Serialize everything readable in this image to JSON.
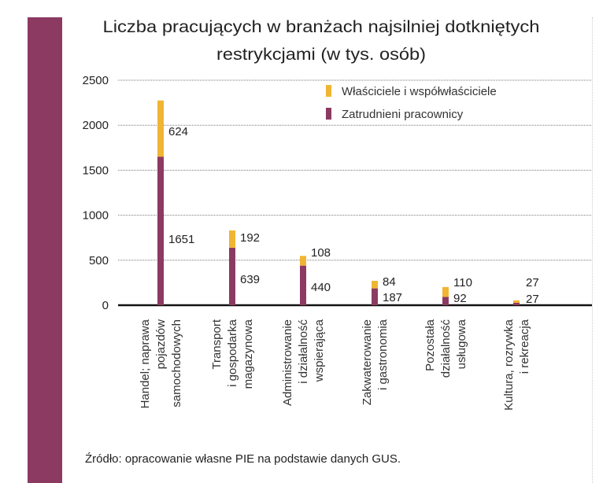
{
  "chart_data": {
    "type": "bar",
    "stacked": true,
    "title": [
      "Liczba pracujących w branżach najsilniej dotkniętych",
      "restrykcjami (w tys. osób)"
    ],
    "categories": [
      [
        "Handel; naprawa",
        "pojazdów",
        "samochodowych"
      ],
      [
        "Transport",
        "i gospodarka",
        "magazynowa"
      ],
      [
        "Administrowanie",
        "i działalność",
        "wspierająca"
      ],
      [
        "Zakwaterowanie",
        "i gastronomia"
      ],
      [
        "Pozostała",
        "działalność",
        "usługowa"
      ],
      [
        "Kultura, rozrywka",
        "i rekreacja"
      ]
    ],
    "series": [
      {
        "name": "Zatrudnieni pracownicy",
        "color": "#8c3a62",
        "values": [
          1651,
          639,
          440,
          187,
          92,
          27
        ]
      },
      {
        "name": "Właściciele i współwłaściciele",
        "color": "#f0b533",
        "values": [
          624,
          192,
          108,
          84,
          110,
          27
        ]
      }
    ],
    "legend_order": [
      1,
      0
    ],
    "legend_position": "top-right",
    "ylim": [
      0,
      2500
    ],
    "yticks": [
      "0",
      "500",
      "1000",
      "1500",
      "2000",
      "2500"
    ],
    "grid": "horizontal dotted",
    "xlabel": "",
    "ylabel": ""
  },
  "source": "Źródło: opracowanie własne PIE na podstawie danych GUS."
}
